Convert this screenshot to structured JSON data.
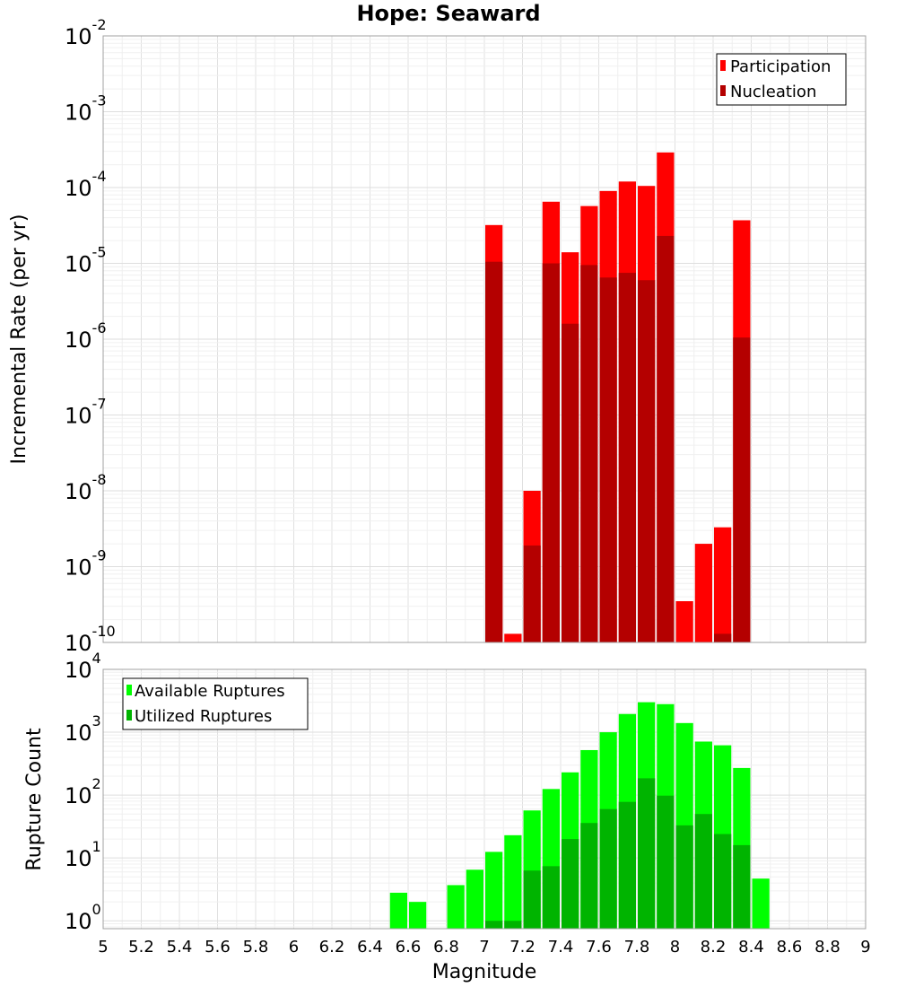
{
  "chart_data": [
    {
      "type": "bar",
      "title": "Hope: Seaward",
      "xlabel": "",
      "ylabel": "Incremental Rate (per yr)",
      "xlim": [
        5,
        9
      ],
      "ylim": [
        1e-10,
        0.01
      ],
      "yscale": "log",
      "grid": true,
      "legend_position": "top-right",
      "y_ticks": [
        {
          "base": "10",
          "exp": "-2"
        },
        {
          "base": "10",
          "exp": "-3"
        },
        {
          "base": "10",
          "exp": "-4"
        },
        {
          "base": "10",
          "exp": "-5"
        },
        {
          "base": "10",
          "exp": "-6"
        },
        {
          "base": "10",
          "exp": "-7"
        },
        {
          "base": "10",
          "exp": "-8"
        },
        {
          "base": "10",
          "exp": "-9"
        },
        {
          "base": "10",
          "exp": "-10"
        }
      ],
      "series": [
        {
          "name": "Participation",
          "color": "#ff0000",
          "x": [
            7.05,
            7.15,
            7.25,
            7.35,
            7.45,
            7.55,
            7.65,
            7.75,
            7.85,
            7.95,
            8.05,
            8.15,
            8.25,
            8.35
          ],
          "values": [
            3.2e-05,
            1.3e-10,
            1e-08,
            6.5e-05,
            1.4e-05,
            5.7e-05,
            9e-05,
            0.00012,
            0.000105,
            0.00029,
            3.5e-10,
            2e-09,
            3.3e-09,
            3.7e-05
          ]
        },
        {
          "name": "Nucleation",
          "color": "#b40000",
          "x": [
            7.05,
            7.25,
            7.35,
            7.45,
            7.55,
            7.65,
            7.75,
            7.85,
            7.95,
            8.25,
            8.35
          ],
          "values": [
            1.05e-05,
            1.9e-09,
            1e-05,
            1.6e-06,
            9.5e-06,
            6.5e-06,
            7.5e-06,
            6e-06,
            2.3e-05,
            1.3e-10,
            1.05e-06
          ]
        }
      ]
    },
    {
      "type": "bar",
      "title": "",
      "xlabel": "Magnitude",
      "ylabel": "Rupture Count",
      "xlim": [
        5,
        9
      ],
      "ylim": [
        0.75,
        10000
      ],
      "yscale": "log",
      "grid": true,
      "legend_position": "top-left",
      "x_ticks": [
        "5",
        "5.2",
        "5.4",
        "5.6",
        "5.8",
        "6",
        "6.2",
        "6.4",
        "6.6",
        "6.8",
        "7",
        "7.2",
        "7.4",
        "7.6",
        "7.8",
        "8",
        "8.2",
        "8.4",
        "8.6",
        "8.8",
        "9"
      ],
      "y_ticks": [
        {
          "base": "10",
          "exp": "4"
        },
        {
          "base": "10",
          "exp": "3"
        },
        {
          "base": "10",
          "exp": "2"
        },
        {
          "base": "10",
          "exp": "1"
        },
        {
          "base": "10",
          "exp": "0"
        }
      ],
      "series": [
        {
          "name": "Available Ruptures",
          "color": "#00ff00",
          "x": [
            6.55,
            6.65,
            6.85,
            6.95,
            7.05,
            7.15,
            7.25,
            7.35,
            7.45,
            7.55,
            7.65,
            7.75,
            7.85,
            7.95,
            8.05,
            8.15,
            8.25,
            8.35,
            8.45
          ],
          "values": [
            2.8,
            2.0,
            3.7,
            6.5,
            12.5,
            23,
            57,
            125,
            230,
            520,
            1000,
            1950,
            3000,
            2800,
            1400,
            710,
            620,
            270,
            4.7
          ]
        },
        {
          "name": "Utilized Ruptures",
          "color": "#00b400",
          "x": [
            7.05,
            7.15,
            7.25,
            7.35,
            7.45,
            7.55,
            7.65,
            7.75,
            7.85,
            7.95,
            8.05,
            8.15,
            8.25,
            8.35
          ],
          "values": [
            1.0,
            1.0,
            6.3,
            7.4,
            20,
            36,
            60,
            78,
            185,
            98,
            33,
            50,
            24,
            16
          ]
        }
      ]
    }
  ]
}
